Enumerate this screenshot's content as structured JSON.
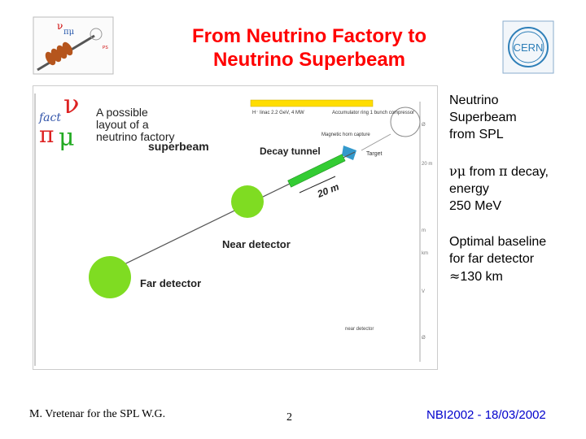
{
  "header": {
    "title_line1": "From Neutrino Factory to",
    "title_line2": "Neutrino Superbeam"
  },
  "figure": {
    "logo_letters": "ν fact πμ",
    "caption_line1": "A possible",
    "caption_line2": "layout of a",
    "caption_line3": "neutrino factory",
    "caption_superbeam": "superbeam",
    "linac_label": "H⁻ linac 2.2 GeV, 4 MW",
    "accumulator_label": "Accumulator ring 1 bunch compressor",
    "horn_label": "Magnetic horn capture",
    "target_label": "Target",
    "decay_tunnel_label": "Decay tunnel",
    "length_label": "20 m",
    "near_detector_label": "Near detector",
    "far_detector_label": "Far detector",
    "near_detector_small": "near detector",
    "side_ticks": [
      "Ø",
      "20 m",
      "m",
      "km",
      "V",
      "Ø"
    ]
  },
  "notes": {
    "n1_line1": "Neutrino",
    "n1_line2": "Superbeam",
    "n1_line3": "from SPL",
    "n2_nu": "ν",
    "n2_mu": "μ",
    "n2_from": " from ",
    "n2_pi": "π",
    "n2_decay": " decay,",
    "n2_line2": "energy",
    "n2_line3": "250 MeV",
    "n3_line1": "Optimal baseline",
    "n3_line2": "for far detector",
    "n3_approx": "≈",
    "n3_value": "130 km"
  },
  "footer": {
    "author": "M. Vretenar for the SPL W.G.",
    "page": "2",
    "conference": "NBI2002 - 18/03/2002"
  },
  "colors": {
    "title": "#ff0000",
    "conference": "#0000cc",
    "detector": "#7fdc22",
    "tunnel": "#33cc33",
    "horn": "#3399cc",
    "cern": "#2e7fb8"
  }
}
